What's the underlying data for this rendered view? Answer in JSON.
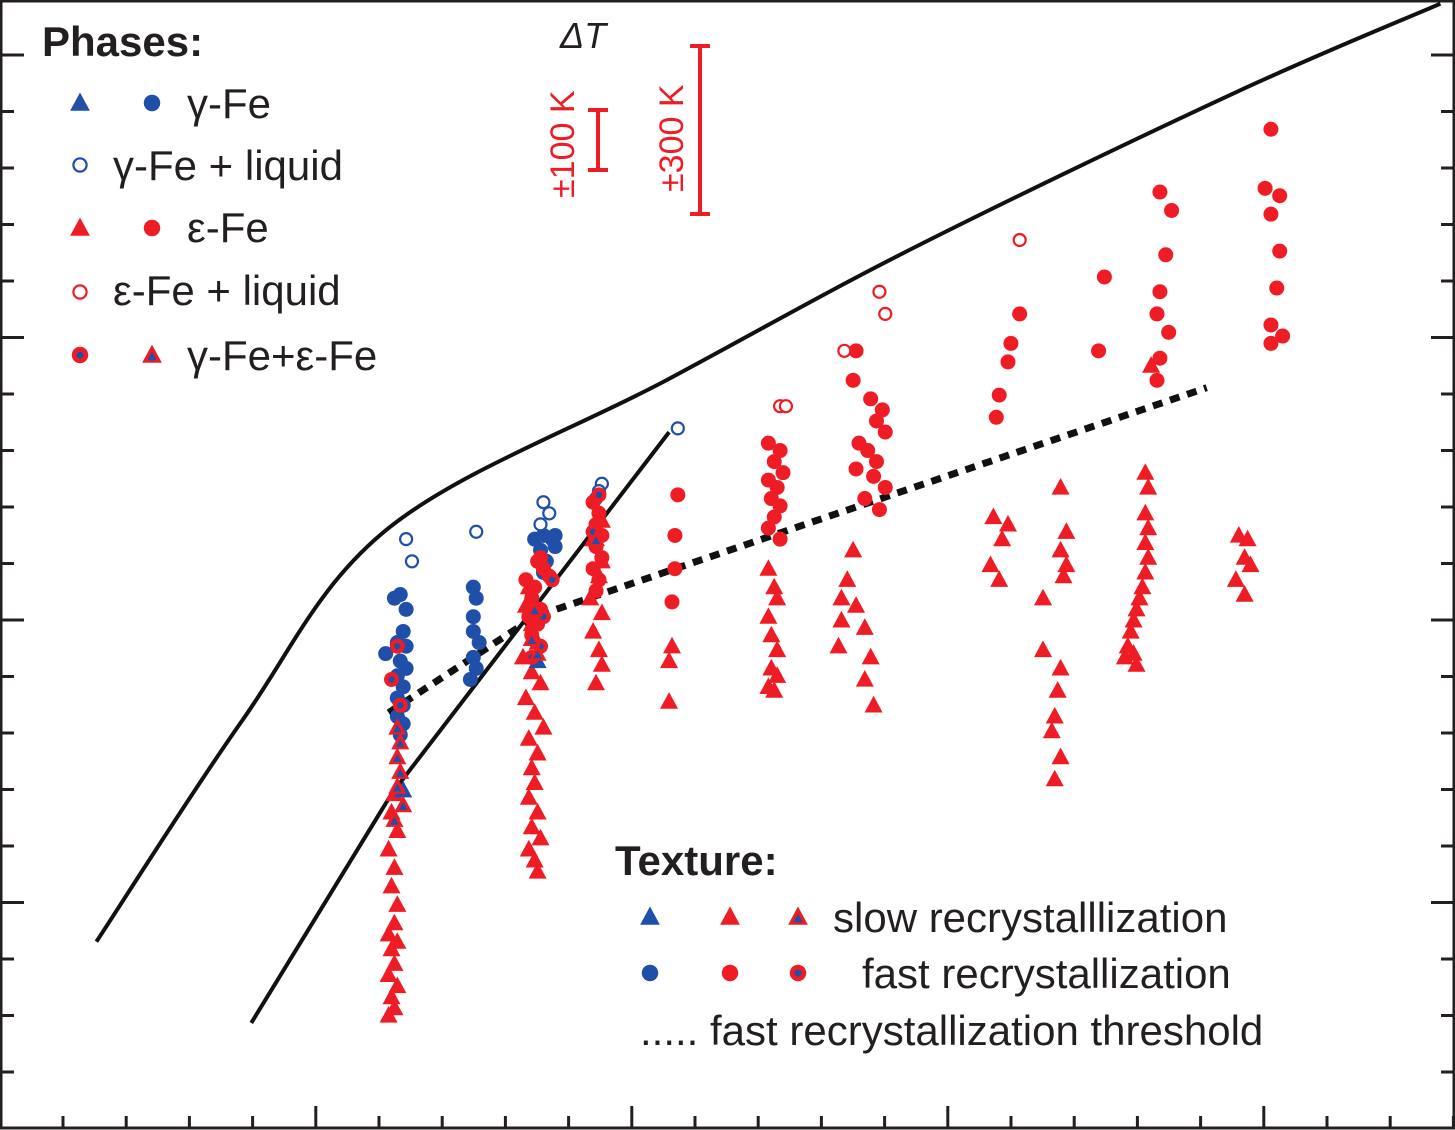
{
  "chart_data": {
    "type": "scatter",
    "colors": {
      "blue": "#1f4fa8",
      "red": "#ee1c25",
      "black": "#111111"
    },
    "legend_phases": {
      "title": "Phases:",
      "entries": [
        {
          "label": "γ-Fe",
          "markers": [
            "triangle-blue",
            "circle-blue"
          ]
        },
        {
          "label": "γ-Fe + liquid",
          "markers": [
            "open-circle-blue"
          ]
        },
        {
          "label": "ε-Fe",
          "markers": [
            "triangle-red",
            "circle-red"
          ]
        },
        {
          "label": "ε-Fe + liquid",
          "markers": [
            "open-circle-red"
          ]
        },
        {
          "label": "γ-Fe+ε-Fe",
          "markers": [
            "circle-mixed",
            "triangle-mixed"
          ]
        }
      ]
    },
    "legend_texture": {
      "title": "Texture:",
      "entries": [
        {
          "label": "slow recrystalllization",
          "markers": [
            "triangle-blue",
            "triangle-red",
            "triangle-mixed"
          ]
        },
        {
          "label": "fast recrystallization",
          "markers": [
            "circle-blue",
            "circle-red",
            "circle-mixed"
          ]
        },
        {
          "label": ".....  fast recrystallization threshold",
          "markers": []
        }
      ]
    },
    "delta_t": {
      "title": "ΔT",
      "bars": [
        "±100 K",
        "±300 K"
      ]
    },
    "ticks": {
      "x_count": 23,
      "y_count": 20
    },
    "lines": [
      {
        "name": "melting curve",
        "style": "solid",
        "points": [
          [
            0.0,
            0.0
          ],
          [
            5.0,
            6.0
          ],
          [
            10.0,
            11.2
          ],
          [
            19.5,
            15.2
          ],
          [
            28.0,
            18.8
          ],
          [
            39.0,
            23.0
          ],
          [
            46.0,
            25.4
          ]
        ]
      },
      {
        "name": "γ-ε boundary",
        "style": "solid",
        "points": [
          [
            5.3,
            -2.2
          ],
          [
            10.1,
            4.0
          ],
          [
            19.6,
            13.8
          ]
        ]
      },
      {
        "name": "fast recrystallization threshold",
        "style": "dotted",
        "points": [
          [
            10.0,
            6.2
          ],
          [
            15.0,
            8.8
          ],
          [
            25.0,
            11.5
          ],
          [
            38.0,
            15.0
          ]
        ]
      }
    ],
    "series": [
      {
        "name": "blue-circle",
        "points": [
          [
            10.2,
            9.3
          ],
          [
            10.4,
            9.4
          ],
          [
            10.6,
            9.0
          ],
          [
            10.5,
            8.4
          ],
          [
            10.3,
            8.1
          ],
          [
            10.6,
            8.0
          ],
          [
            9.9,
            7.8
          ],
          [
            10.4,
            7.6
          ],
          [
            10.6,
            7.4
          ],
          [
            10.3,
            7.2
          ],
          [
            10.5,
            6.9
          ],
          [
            10.3,
            6.6
          ],
          [
            10.5,
            6.4
          ],
          [
            10.3,
            6.1
          ],
          [
            10.5,
            5.9
          ],
          [
            10.4,
            5.6
          ],
          [
            12.9,
            9.6
          ],
          [
            13.0,
            9.3
          ],
          [
            12.9,
            8.8
          ],
          [
            12.9,
            8.4
          ],
          [
            13.1,
            8.1
          ],
          [
            12.9,
            7.7
          ],
          [
            13.0,
            7.4
          ],
          [
            12.8,
            7.1
          ],
          [
            15.0,
            10.9
          ],
          [
            15.2,
            10.6
          ],
          [
            15.4,
            10.3
          ],
          [
            15.3,
            10.0
          ],
          [
            15.6,
            10.9
          ],
          [
            15.7,
            10.7
          ],
          [
            15.3,
            11.0
          ],
          [
            15.7,
            11.0
          ]
        ]
      },
      {
        "name": "blue-open-circle",
        "points": [
          [
            10.6,
            10.9
          ],
          [
            10.8,
            10.3
          ],
          [
            13.0,
            11.1
          ],
          [
            15.3,
            11.9
          ],
          [
            15.5,
            11.6
          ],
          [
            15.2,
            11.3
          ],
          [
            17.3,
            12.4
          ],
          [
            17.2,
            12.2
          ],
          [
            17.1,
            12.0
          ],
          [
            19.9,
            13.9
          ]
        ]
      },
      {
        "name": "red-circle",
        "points": [
          [
            15.1,
            10.3
          ],
          [
            15.3,
            10.1
          ],
          [
            15.5,
            9.9
          ],
          [
            14.7,
            9.8
          ],
          [
            15.0,
            9.6
          ],
          [
            14.9,
            9.3
          ],
          [
            15.2,
            9.0
          ],
          [
            14.8,
            8.8
          ],
          [
            15.1,
            8.6
          ],
          [
            14.9,
            8.3
          ],
          [
            15.2,
            10.4
          ],
          [
            17.0,
            11.9
          ],
          [
            17.2,
            11.6
          ],
          [
            17.1,
            11.3
          ],
          [
            17.3,
            11.0
          ],
          [
            17.1,
            10.7
          ],
          [
            17.3,
            10.4
          ],
          [
            17.0,
            10.1
          ],
          [
            17.2,
            9.8
          ],
          [
            17.1,
            9.5
          ],
          [
            19.9,
            12.1
          ],
          [
            19.8,
            11.0
          ],
          [
            19.8,
            10.1
          ],
          [
            19.7,
            9.2
          ],
          [
            23.0,
            13.5
          ],
          [
            23.4,
            13.3
          ],
          [
            23.2,
            13.0
          ],
          [
            23.5,
            12.7
          ],
          [
            23.0,
            12.5
          ],
          [
            23.3,
            12.3
          ],
          [
            23.1,
            12.0
          ],
          [
            23.4,
            11.8
          ],
          [
            23.2,
            11.5
          ],
          [
            23.0,
            11.2
          ],
          [
            23.4,
            10.9
          ],
          [
            26.0,
            16.0
          ],
          [
            25.9,
            15.2
          ],
          [
            26.5,
            14.7
          ],
          [
            26.9,
            14.4
          ],
          [
            26.7,
            14.1
          ],
          [
            27.0,
            13.8
          ],
          [
            26.1,
            13.5
          ],
          [
            26.4,
            13.3
          ],
          [
            26.7,
            13.0
          ],
          [
            26.0,
            12.8
          ],
          [
            26.6,
            12.6
          ],
          [
            27.0,
            12.3
          ],
          [
            26.3,
            12.0
          ],
          [
            26.8,
            11.7
          ],
          [
            31.3,
            16.2
          ],
          [
            31.2,
            15.7
          ],
          [
            30.9,
            14.8
          ],
          [
            30.8,
            14.2
          ],
          [
            31.6,
            17.0
          ],
          [
            34.5,
            18.0
          ],
          [
            34.3,
            16.0
          ],
          [
            36.4,
            20.3
          ],
          [
            36.8,
            19.8
          ],
          [
            36.6,
            18.6
          ],
          [
            36.4,
            17.6
          ],
          [
            36.3,
            17.0
          ],
          [
            36.7,
            16.5
          ],
          [
            36.4,
            15.8
          ],
          [
            36.3,
            15.2
          ],
          [
            40.2,
            22.0
          ],
          [
            40.0,
            20.4
          ],
          [
            40.5,
            20.2
          ],
          [
            40.2,
            19.7
          ],
          [
            40.5,
            18.7
          ],
          [
            40.4,
            17.7
          ],
          [
            40.2,
            16.7
          ],
          [
            40.6,
            16.4
          ],
          [
            40.2,
            16.2
          ]
        ]
      },
      {
        "name": "red-open-circle",
        "points": [
          [
            31.6,
            19.0
          ],
          [
            26.8,
            17.6
          ],
          [
            27.0,
            17.0
          ],
          [
            25.6,
            16.0
          ],
          [
            23.4,
            14.5
          ],
          [
            23.6,
            14.5
          ]
        ]
      },
      {
        "name": "red-triangle",
        "points": [
          [
            10.2,
            4.0
          ],
          [
            10.1,
            3.5
          ],
          [
            10.3,
            3.0
          ],
          [
            10.0,
            2.5
          ],
          [
            10.2,
            2.0
          ],
          [
            10.1,
            1.5
          ],
          [
            10.3,
            1.0
          ],
          [
            10.2,
            0.5
          ],
          [
            10.0,
            0.2
          ],
          [
            10.3,
            0.0
          ],
          [
            10.1,
            -0.2
          ],
          [
            10.2,
            -0.6
          ],
          [
            10.0,
            -0.9
          ],
          [
            10.3,
            -1.2
          ],
          [
            10.1,
            -1.5
          ],
          [
            10.2,
            -1.8
          ],
          [
            10.0,
            -2.0
          ],
          [
            14.8,
            9.6
          ],
          [
            14.7,
            9.1
          ],
          [
            14.9,
            8.6
          ],
          [
            15.1,
            8.1
          ],
          [
            14.6,
            7.7
          ],
          [
            14.9,
            7.3
          ],
          [
            15.2,
            7.0
          ],
          [
            14.7,
            6.6
          ],
          [
            15.0,
            6.2
          ],
          [
            15.3,
            5.8
          ],
          [
            14.8,
            5.5
          ],
          [
            15.1,
            5.1
          ],
          [
            14.9,
            4.7
          ],
          [
            15.0,
            4.3
          ],
          [
            14.8,
            3.9
          ],
          [
            15.1,
            3.5
          ],
          [
            14.9,
            3.1
          ],
          [
            15.2,
            2.8
          ],
          [
            14.8,
            2.5
          ],
          [
            15.0,
            2.2
          ],
          [
            15.1,
            1.9
          ],
          [
            17.3,
            11.4
          ],
          [
            17.0,
            10.9
          ],
          [
            17.3,
            10.3
          ],
          [
            17.2,
            9.9
          ],
          [
            16.9,
            9.3
          ],
          [
            17.3,
            8.9
          ],
          [
            17.0,
            8.4
          ],
          [
            17.2,
            7.9
          ],
          [
            17.3,
            7.5
          ],
          [
            17.1,
            7.0
          ],
          [
            19.7,
            8.0
          ],
          [
            19.6,
            7.6
          ],
          [
            19.6,
            6.5
          ],
          [
            23.0,
            10.1
          ],
          [
            23.2,
            9.6
          ],
          [
            23.3,
            9.3
          ],
          [
            23.0,
            8.8
          ],
          [
            23.1,
            8.3
          ],
          [
            23.3,
            7.9
          ],
          [
            23.1,
            7.4
          ],
          [
            23.3,
            7.2
          ],
          [
            23.0,
            6.9
          ],
          [
            23.2,
            6.8
          ],
          [
            25.9,
            10.6
          ],
          [
            25.7,
            9.8
          ],
          [
            25.5,
            9.3
          ],
          [
            26.0,
            9.1
          ],
          [
            25.5,
            8.7
          ],
          [
            26.3,
            8.5
          ],
          [
            25.4,
            8.0
          ],
          [
            26.5,
            7.7
          ],
          [
            26.3,
            7.1
          ],
          [
            26.6,
            6.4
          ],
          [
            30.7,
            11.5
          ],
          [
            31.2,
            11.3
          ],
          [
            31.0,
            10.9
          ],
          [
            30.6,
            10.2
          ],
          [
            30.9,
            9.8
          ],
          [
            33.0,
            12.3
          ],
          [
            33.2,
            11.1
          ],
          [
            33.0,
            10.6
          ],
          [
            33.2,
            10.2
          ],
          [
            33.1,
            9.9
          ],
          [
            32.4,
            9.3
          ],
          [
            32.4,
            7.9
          ],
          [
            33.0,
            7.4
          ],
          [
            32.9,
            6.8
          ],
          [
            32.8,
            6.1
          ],
          [
            32.7,
            5.7
          ],
          [
            33.0,
            5.0
          ],
          [
            32.8,
            4.4
          ],
          [
            35.9,
            12.7
          ],
          [
            36.0,
            12.3
          ],
          [
            35.9,
            11.6
          ],
          [
            36.0,
            11.2
          ],
          [
            35.9,
            10.8
          ],
          [
            36.0,
            10.4
          ],
          [
            35.9,
            10.0
          ],
          [
            35.8,
            9.6
          ],
          [
            35.7,
            9.3
          ],
          [
            35.6,
            9.0
          ],
          [
            35.5,
            8.7
          ],
          [
            35.4,
            8.4
          ],
          [
            35.3,
            8.0
          ],
          [
            35.2,
            7.7
          ],
          [
            35.5,
            7.8
          ],
          [
            35.6,
            7.5
          ],
          [
            39.1,
            11.0
          ],
          [
            39.4,
            10.9
          ],
          [
            39.3,
            10.4
          ],
          [
            39.5,
            10.2
          ],
          [
            39.0,
            9.8
          ],
          [
            39.3,
            9.4
          ],
          [
            36.1,
            15.6
          ]
        ]
      },
      {
        "name": "blue-triangle",
        "points": [
          [
            10.5,
            4.1
          ],
          [
            15.1,
            7.6
          ]
        ]
      },
      {
        "name": "mixed-circle",
        "points": [
          [
            10.1,
            7.1
          ],
          [
            10.4,
            6.4
          ],
          [
            15.3,
            8.8
          ],
          [
            15.2,
            8.0
          ],
          [
            14.9,
            7.7
          ],
          [
            15.6,
            9.8
          ],
          [
            17.2,
            12.1
          ],
          [
            17.0,
            11.1
          ],
          [
            10.3,
            8.0
          ]
        ]
      },
      {
        "name": "mixed-triangle",
        "points": [
          [
            10.3,
            5.8
          ],
          [
            10.4,
            5.4
          ],
          [
            10.3,
            5.0
          ],
          [
            10.4,
            4.6
          ],
          [
            10.3,
            4.2
          ],
          [
            10.5,
            3.7
          ],
          [
            10.2,
            3.3
          ],
          [
            14.9,
            8.2
          ],
          [
            15.1,
            7.8
          ],
          [
            15.0,
            9.0
          ],
          [
            17.1,
            10.9
          ]
        ]
      }
    ]
  }
}
